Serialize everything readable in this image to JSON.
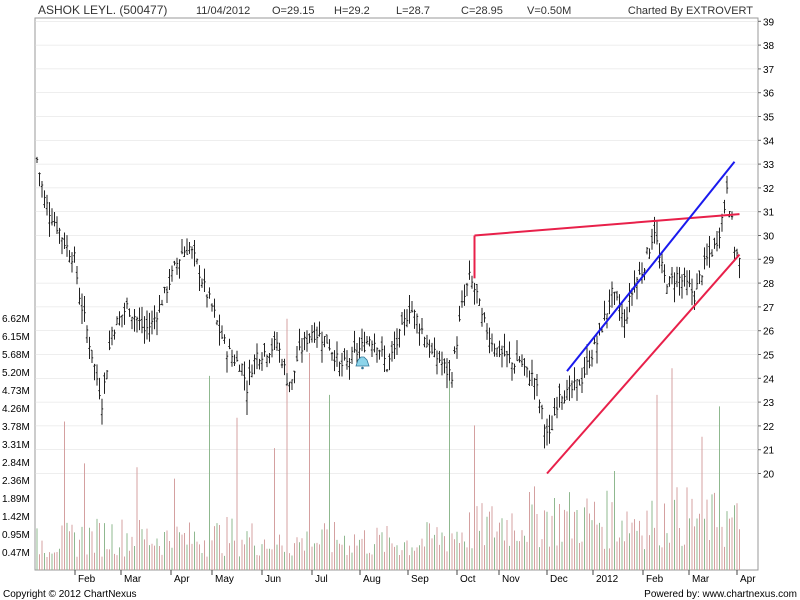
{
  "header": {
    "title": "ASHOK LEYL. (500477)",
    "date": "11/04/2012",
    "open": "O=29.15",
    "high": "H=29.2",
    "low": "L=28.7",
    "close": "C=28.95",
    "volume": "V=0.50M",
    "charted_by": "Charted By EXTROVERT"
  },
  "footer": {
    "copyright": "Copyright © 2012 ChartNexus",
    "powered_by": "Powered by: www.chartnexus.com"
  },
  "colors": {
    "price_bars": "#222222",
    "volume_up": "#d4a0a0",
    "volume_down": "#8fb88f",
    "red_trendline": "#e8204a",
    "blue_trendline": "#1a1aee",
    "grid": "#dddddd"
  },
  "chart_data": {
    "type": "ohlc",
    "price_axis": {
      "min": 19,
      "max": 39,
      "ticks": [
        "39",
        "38",
        "37",
        "36",
        "35",
        "34",
        "33",
        "32",
        "31",
        "30",
        "29",
        "28",
        "27",
        "26",
        "25",
        "24",
        "23",
        "22",
        "21",
        "20"
      ]
    },
    "volume_axis": {
      "ticks": [
        "6.62M",
        "6.15M",
        "5.68M",
        "5.20M",
        "4.73M",
        "4.26M",
        "3.78M",
        "3.31M",
        "2.84M",
        "2.36M",
        "1.89M",
        "1.42M",
        "0.95M",
        "0.47M"
      ]
    },
    "x_labels": [
      "Feb",
      "Mar",
      "Apr",
      "May",
      "Jun",
      "Jul",
      "Aug",
      "Sep",
      "Oct",
      "Nov",
      "Dec",
      "2012",
      "Feb",
      "Mar",
      "Apr"
    ],
    "close_path": [
      [
        0,
        33.2
      ],
      [
        3,
        31.5
      ],
      [
        6,
        30.8
      ],
      [
        9,
        30.2
      ],
      [
        12,
        29.5
      ],
      [
        15,
        29.0
      ],
      [
        17,
        27.5
      ],
      [
        20,
        26.0
      ],
      [
        23,
        24.5
      ],
      [
        26,
        23.0
      ],
      [
        28,
        24.5
      ],
      [
        30,
        26.0
      ],
      [
        33,
        26.5
      ],
      [
        36,
        27.0
      ],
      [
        40,
        26.5
      ],
      [
        43,
        26.0
      ],
      [
        46,
        26.3
      ],
      [
        49,
        27.0
      ],
      [
        52,
        27.8
      ],
      [
        55,
        28.6
      ],
      [
        58,
        29.3
      ],
      [
        61,
        29.5
      ],
      [
        64,
        28.8
      ],
      [
        67,
        27.8
      ],
      [
        70,
        27.0
      ],
      [
        73,
        26.0
      ],
      [
        76,
        25.2
      ],
      [
        79,
        24.8
      ],
      [
        82,
        24.5
      ],
      [
        84,
        23.6
      ],
      [
        86,
        24.5
      ],
      [
        88,
        25.0
      ],
      [
        91,
        25.1
      ],
      [
        94,
        25.3
      ],
      [
        96,
        25.5
      ],
      [
        98,
        24.8
      ],
      [
        100,
        24.0
      ],
      [
        102,
        23.8
      ],
      [
        104,
        24.8
      ],
      [
        107,
        25.5
      ],
      [
        110,
        26.0
      ],
      [
        113,
        25.8
      ],
      [
        116,
        25.6
      ],
      [
        119,
        25.0
      ],
      [
        121,
        24.5
      ],
      [
        124,
        24.6
      ],
      [
        127,
        25.0
      ],
      [
        130,
        25.3
      ],
      [
        133,
        25.7
      ],
      [
        136,
        25.5
      ],
      [
        138,
        25.0
      ],
      [
        140,
        24.5
      ],
      [
        143,
        25.2
      ],
      [
        146,
        26.0
      ],
      [
        149,
        27.0
      ],
      [
        152,
        26.5
      ],
      [
        155,
        25.8
      ],
      [
        158,
        25.0
      ],
      [
        161,
        24.8
      ],
      [
        164,
        24.3
      ],
      [
        166,
        24.2
      ],
      [
        168,
        25.6
      ],
      [
        170,
        27.0
      ],
      [
        173,
        28.2
      ],
      [
        176,
        27.5
      ],
      [
        178,
        26.5
      ],
      [
        181,
        25.8
      ],
      [
        184,
        25.2
      ],
      [
        187,
        25.0
      ],
      [
        190,
        24.6
      ],
      [
        193,
        24.8
      ],
      [
        196,
        24.2
      ],
      [
        199,
        24.0
      ],
      [
        201,
        23.0
      ],
      [
        203,
        22.0
      ],
      [
        205,
        21.5
      ],
      [
        207,
        22.5
      ],
      [
        209,
        23.5
      ],
      [
        212,
        23.3
      ],
      [
        215,
        23.6
      ],
      [
        218,
        24.0
      ],
      [
        221,
        24.8
      ],
      [
        224,
        25.5
      ],
      [
        227,
        26.5
      ],
      [
        230,
        27.5
      ],
      [
        233,
        27.0
      ],
      [
        235,
        26.3
      ],
      [
        237,
        27.2
      ],
      [
        239,
        28.0
      ],
      [
        242,
        28.5
      ],
      [
        245,
        29.5
      ],
      [
        247,
        30.3
      ],
      [
        249,
        29.0
      ],
      [
        251,
        28.2
      ],
      [
        253,
        28.0
      ],
      [
        256,
        28.3
      ],
      [
        259,
        28.0
      ],
      [
        261,
        27.8
      ],
      [
        263,
        27.5
      ],
      [
        266,
        28.5
      ],
      [
        269,
        29.2
      ],
      [
        271,
        29.5
      ],
      [
        273,
        30.2
      ],
      [
        275,
        31.2
      ],
      [
        276,
        32.2
      ],
      [
        277,
        31.3
      ],
      [
        278,
        30.5
      ],
      [
        279,
        29.5
      ],
      [
        280,
        29.2
      ],
      [
        281,
        28.9
      ]
    ],
    "volume_profile": [
      [
        0,
        0.7
      ],
      [
        30,
        0.9
      ],
      [
        60,
        0.8
      ],
      [
        80,
        0.9
      ],
      [
        100,
        0.7
      ],
      [
        120,
        0.8
      ],
      [
        150,
        0.7
      ],
      [
        170,
        1.0
      ],
      [
        200,
        1.4
      ],
      [
        230,
        1.3
      ],
      [
        260,
        1.4
      ],
      [
        281,
        1.2
      ]
    ],
    "volume_spikes": [
      [
        11,
        3.9
      ],
      [
        19,
        2.8
      ],
      [
        40,
        2.7
      ],
      [
        55,
        2.4
      ],
      [
        69,
        5.1
      ],
      [
        80,
        4.0
      ],
      [
        95,
        3.2
      ],
      [
        100,
        6.6
      ],
      [
        109,
        5.7
      ],
      [
        117,
        4.6
      ],
      [
        165,
        5.0
      ],
      [
        175,
        3.8
      ],
      [
        231,
        2.6
      ],
      [
        248,
        4.6
      ],
      [
        254,
        5.3
      ],
      [
        266,
        3.5
      ],
      [
        273,
        4.3
      ],
      [
        279,
        1.7
      ]
    ],
    "trendlines": [
      {
        "color": "red",
        "from": {
          "bar": 175,
          "price": 30.0
        },
        "to": {
          "bar": 281,
          "price": 30.9
        }
      },
      {
        "color": "red",
        "from": {
          "bar": 204,
          "price": 20.0
        },
        "to": {
          "bar": 281,
          "price": 29.2
        }
      },
      {
        "color": "blue",
        "from": {
          "bar": 212,
          "price": 24.3
        },
        "to": {
          "bar": 279,
          "price": 33.1
        }
      }
    ],
    "grid": true
  }
}
